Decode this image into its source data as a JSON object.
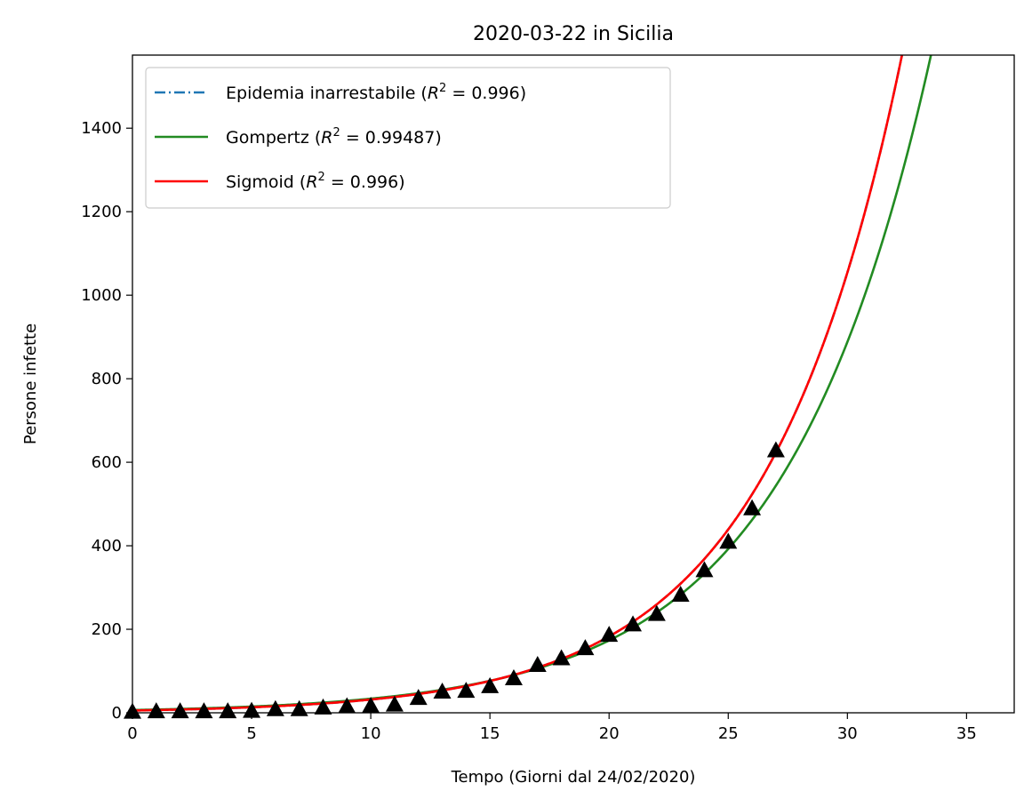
{
  "chart_data": {
    "type": "line",
    "title": "2020-03-22 in Sicilia",
    "xlabel": "Tempo (Giorni dal 24/02/2020)",
    "ylabel": "Persone infette",
    "xlim": [
      0,
      37
    ],
    "ylim": [
      0,
      1575
    ],
    "x_ticks": [
      0,
      5,
      10,
      15,
      20,
      25,
      30,
      35
    ],
    "y_ticks": [
      0,
      200,
      400,
      600,
      800,
      1000,
      1200,
      1400
    ],
    "grid": false,
    "legend_position": "top-left",
    "legend": [
      {
        "prefix": "Epidemia inarrestabile (",
        "r2": "R",
        "sup": "2",
        "value": " = 0.996)"
      },
      {
        "prefix": "Gompertz (",
        "r2": "R",
        "sup": "2",
        "value": " = 0.99487)"
      },
      {
        "prefix": "Sigmoid (",
        "r2": "R",
        "sup": "2",
        "value": " = 0.996)"
      }
    ],
    "series": [
      {
        "name": "Epidemia inarrestabile",
        "style": "dashdot",
        "color": "#1f77b4",
        "model": "exponential",
        "params": {
          "a": 5.5,
          "b": 0.1752
        }
      },
      {
        "name": "Gompertz",
        "style": "solid",
        "color": "#228b22",
        "model": "exponential",
        "params": {
          "a": 6.6,
          "b": 0.1634
        }
      },
      {
        "name": "Sigmoid",
        "style": "solid",
        "color": "#ff0000",
        "model": "exponential",
        "params": {
          "a": 5.5,
          "b": 0.1752
        }
      }
    ],
    "observed": {
      "marker": "triangle",
      "color": "#000000",
      "x": [
        0,
        1,
        2,
        3,
        4,
        5,
        6,
        7,
        8,
        9,
        10,
        11,
        12,
        13,
        14,
        15,
        16,
        17,
        18,
        19,
        20,
        21,
        22,
        23,
        24,
        25,
        26,
        27
      ],
      "y": [
        3,
        4,
        4,
        4,
        4,
        5,
        9,
        9,
        13,
        16,
        17,
        20,
        36,
        51,
        53,
        64,
        83,
        115,
        131,
        155,
        187,
        212,
        237,
        283,
        342,
        410,
        490,
        629
      ]
    }
  }
}
